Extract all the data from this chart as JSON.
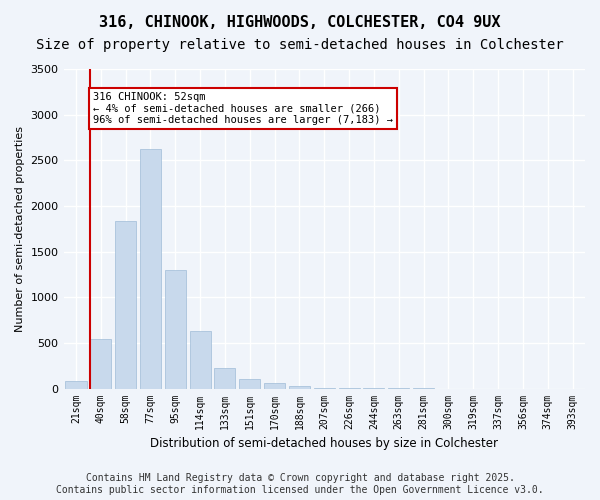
{
  "title_line1": "316, CHINOOK, HIGHWOODS, COLCHESTER, CO4 9UX",
  "title_line2": "Size of property relative to semi-detached houses in Colchester",
  "xlabel": "Distribution of semi-detached houses by size in Colchester",
  "ylabel": "Number of semi-detached properties",
  "categories": [
    "21sqm",
    "40sqm",
    "58sqm",
    "77sqm",
    "95sqm",
    "114sqm",
    "133sqm",
    "151sqm",
    "170sqm",
    "188sqm",
    "207sqm",
    "226sqm",
    "244sqm",
    "263sqm",
    "281sqm",
    "300sqm",
    "319sqm",
    "337sqm",
    "356sqm",
    "374sqm",
    "393sqm"
  ],
  "values": [
    80,
    540,
    1840,
    2620,
    1300,
    630,
    220,
    110,
    60,
    30,
    10,
    5,
    3,
    1,
    1,
    0,
    0,
    0,
    0,
    0,
    0
  ],
  "bar_color": "#c8d9ec",
  "bar_edge_color": "#a0bcd8",
  "vline_x": 1,
  "vline_color": "#cc0000",
  "annotation_text": "316 CHINOOK: 52sqm\n← 4% of semi-detached houses are smaller (266)\n96% of semi-detached houses are larger (7,183) →",
  "annotation_box_color": "#ffffff",
  "annotation_box_edge": "#cc0000",
  "ylim": [
    0,
    3500
  ],
  "yticks": [
    0,
    500,
    1000,
    1500,
    2000,
    2500,
    3000,
    3500
  ],
  "footnote": "Contains HM Land Registry data © Crown copyright and database right 2025.\nContains public sector information licensed under the Open Government Licence v3.0.",
  "background_color": "#f0f4fa",
  "plot_bg_color": "#f0f4fa",
  "grid_color": "#ffffff",
  "title_fontsize": 11,
  "subtitle_fontsize": 10,
  "footnote_fontsize": 7
}
